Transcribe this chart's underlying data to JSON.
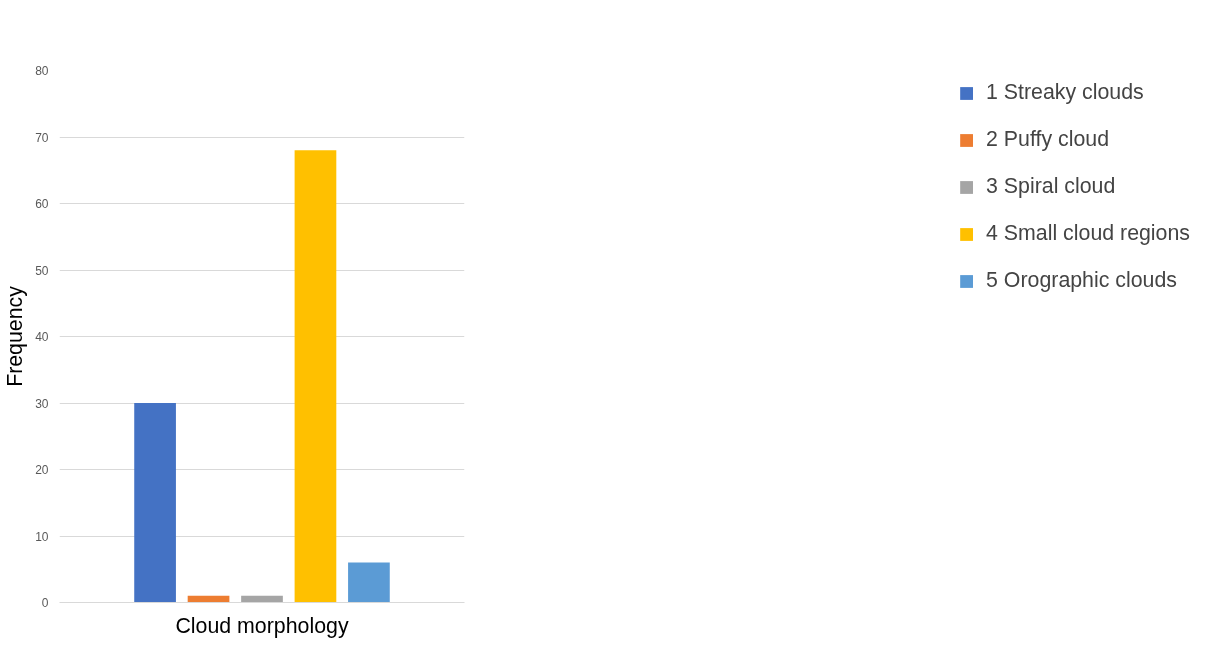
{
  "chart_data": {
    "type": "bar",
    "xlabel": "Cloud morphology",
    "ylabel": "Frequency",
    "categories": [
      null
    ],
    "series": [
      {
        "name": "1 Streaky clouds",
        "color": "#4472c4",
        "values": [
          30
        ]
      },
      {
        "name": "2 Puffy cloud",
        "color": "#ed7d31",
        "values": [
          1
        ]
      },
      {
        "name": "3 Spiral cloud",
        "color": "#a5a5a5",
        "values": [
          1
        ]
      },
      {
        "name": "4 Small cloud regions",
        "color": "#ffc000",
        "values": [
          68
        ]
      },
      {
        "name": "5 Orographic clouds",
        "color": "#5b9bd5",
        "values": [
          6
        ]
      }
    ],
    "ylim": [
      0,
      80
    ],
    "yticks": [
      0,
      10,
      20,
      30,
      40,
      50,
      60,
      70,
      80
    ],
    "grid": "y",
    "legend": "right"
  }
}
